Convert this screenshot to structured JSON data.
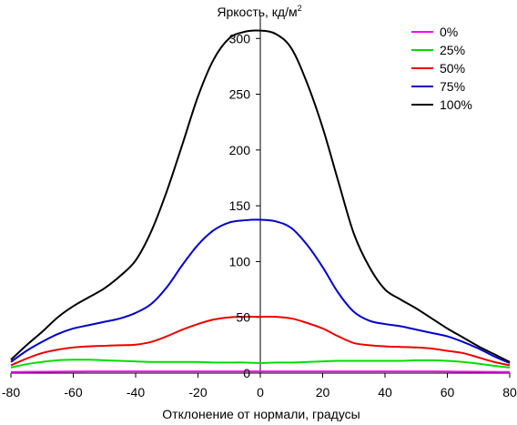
{
  "chart_data": {
    "type": "line",
    "ylabel": "Яркость, кд/м",
    "ylabel_superscript": "2",
    "xlabel": "Отклонение от нормали, градусы",
    "xlim": [
      -80,
      80
    ],
    "ylim": [
      0,
      310
    ],
    "x_ticks": [
      -80,
      -60,
      -40,
      -20,
      0,
      20,
      40,
      60,
      80
    ],
    "y_ticks": [
      0,
      50,
      100,
      150,
      200,
      250,
      300
    ],
    "grid": false,
    "legend_position": "top-right",
    "x": [
      -80,
      -75,
      -70,
      -65,
      -60,
      -55,
      -50,
      -45,
      -40,
      -35,
      -30,
      -25,
      -20,
      -15,
      -10,
      -5,
      0,
      5,
      10,
      15,
      20,
      25,
      30,
      35,
      40,
      45,
      50,
      55,
      60,
      65,
      70,
      75,
      80
    ],
    "series": [
      {
        "name": "0%",
        "color": "#ff00ff",
        "values": [
          1,
          1.1,
          1.2,
          1.3,
          1.4,
          1.5,
          1.5,
          1.5,
          1.5,
          1.5,
          1.5,
          1.5,
          1.5,
          1.5,
          1.5,
          1.5,
          1.5,
          1.5,
          1.5,
          1.5,
          1.5,
          1.5,
          1.5,
          1.5,
          1.5,
          1.5,
          1.5,
          1.5,
          1.4,
          1.3,
          1.2,
          1.1,
          1
        ]
      },
      {
        "name": "25%",
        "color": "#00dd00",
        "values": [
          5,
          8,
          10,
          11.5,
          12,
          12,
          11.5,
          11,
          10.5,
          10,
          10,
          10,
          10,
          9.5,
          9.5,
          9.5,
          9,
          9.5,
          9.5,
          10,
          10.5,
          11,
          11,
          11,
          11,
          11,
          11.5,
          11.5,
          11,
          10,
          8.5,
          6.5,
          5
        ]
      },
      {
        "name": "50%",
        "color": "#ee0000",
        "values": [
          7,
          13,
          18,
          21,
          23,
          24,
          24.5,
          25,
          25.5,
          28,
          33,
          39,
          44,
          48,
          50,
          50.5,
          50.5,
          50.5,
          49,
          45,
          40,
          33,
          27,
          25,
          24,
          23.5,
          23,
          22,
          20,
          18,
          14,
          10,
          7
        ]
      },
      {
        "name": "75%",
        "color": "#0000cc",
        "values": [
          10,
          20,
          28,
          35,
          40,
          43,
          46,
          49,
          54,
          62,
          77,
          97,
          115,
          128,
          135,
          137,
          137.5,
          136,
          130,
          115,
          95,
          72,
          55,
          47,
          44,
          42,
          39,
          36,
          33,
          28,
          22,
          15,
          9
        ]
      },
      {
        "name": "100%",
        "color": "#000000",
        "values": [
          12,
          25,
          37,
          50,
          60,
          68,
          76,
          87,
          101,
          127,
          163,
          205,
          248,
          281,
          300,
          306,
          307,
          304,
          291,
          260,
          220,
          172,
          125,
          95,
          75,
          66,
          58,
          49,
          40,
          32,
          24,
          17,
          10
        ]
      }
    ]
  }
}
